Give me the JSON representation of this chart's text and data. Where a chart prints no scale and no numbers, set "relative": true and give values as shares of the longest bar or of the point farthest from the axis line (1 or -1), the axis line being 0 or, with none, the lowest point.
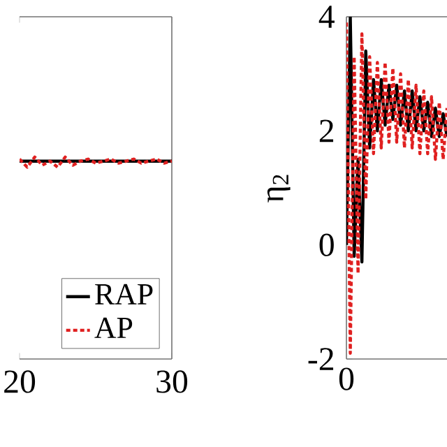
{
  "chart_data": [
    {
      "type": "line",
      "relative": true,
      "xlim": [
        20,
        30
      ],
      "xticks": [
        20,
        30
      ],
      "tick_labels": "x",
      "legend": "bottom right",
      "series": [
        {
          "name": "RAP",
          "color": "#000000",
          "line_style": "solid",
          "x": [
            20,
            21,
            22,
            23,
            24,
            25,
            26,
            27,
            28,
            29,
            30
          ],
          "values": [
            0.98,
            0.98,
            0.98,
            0.98,
            0.98,
            0.98,
            0.98,
            0.98,
            0.98,
            0.98,
            0.98
          ]
        },
        {
          "name": "AP",
          "color": "#e02020",
          "line_style": "dotted",
          "x": [
            20,
            20.5,
            21,
            21.5,
            22,
            22.5,
            23,
            23.5,
            24,
            24.5,
            25,
            25.5,
            26,
            26.5,
            27,
            27.5,
            28,
            28.5,
            29,
            29.5,
            30
          ],
          "values": [
            0.99,
            0.95,
            1.0,
            0.96,
            0.98,
            0.95,
            1.0,
            0.96,
            0.98,
            0.99,
            0.97,
            0.98,
            0.99,
            0.97,
            0.98,
            0.99,
            0.97,
            0.98,
            0.99,
            0.97,
            0.98
          ]
        }
      ]
    },
    {
      "type": "line",
      "ylabel": "η$_{2}$",
      "categories": [
        null,
        null,
        null,
        null,
        null,
        null,
        null,
        null,
        null,
        null,
        null,
        null,
        null,
        null,
        null,
        null,
        null,
        null,
        null,
        null,
        null,
        null,
        null,
        null,
        null,
        null,
        null
      ],
      "ylim": [
        -2,
        4
      ],
      "yticks": [
        -2,
        0,
        2,
        4
      ],
      "annotations": [
        "0"
      ],
      "series": [
        {
          "color": "#000000",
          "line_style": "solid",
          "values": [
            0,
            4,
            -0.2,
            1.5,
            -0.3,
            3.4,
            1.7,
            2.9,
            2.0,
            2.9,
            2.1,
            2.8,
            2.2,
            2.8,
            2.1,
            2.7,
            2.0,
            2.7,
            2.0,
            2.6,
            2.0,
            2.5,
            1.9,
            2.4,
            1.9,
            2.3,
            1.9
          ]
        },
        {
          "color": "#e02020",
          "line_style": "dotted",
          "values": [
            3.9,
            -1.9,
            3.3,
            -0.5,
            3.7,
            0.8,
            3.3,
            1.6,
            3.2,
            1.7,
            3.2,
            1.8,
            3.1,
            1.8,
            3.0,
            1.7,
            2.9,
            1.7,
            2.8,
            1.6,
            2.7,
            1.6,
            2.6,
            1.5,
            2.5,
            1.5,
            2.4
          ]
        }
      ]
    }
  ]
}
